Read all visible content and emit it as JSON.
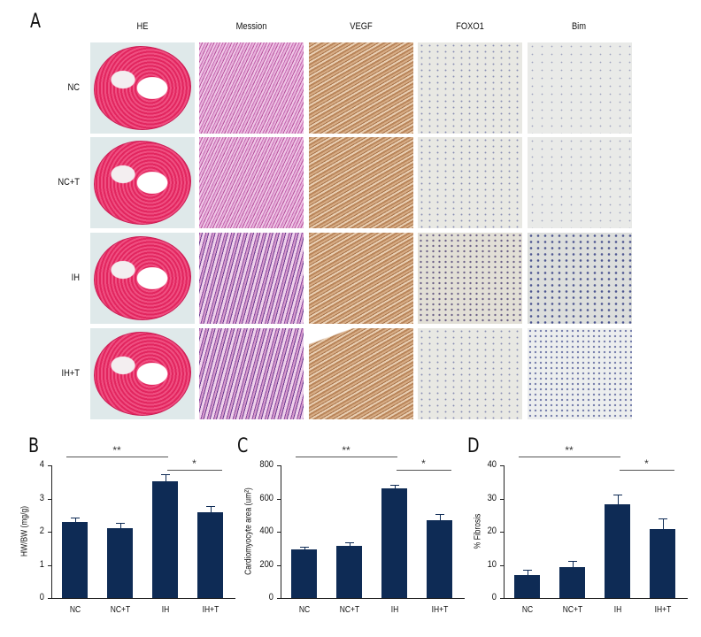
{
  "panel_a": {
    "letter": "A",
    "columns": [
      "HE",
      "Mession",
      "VEGF",
      "FOXO1",
      "Bim"
    ],
    "rows": [
      "NC",
      "NC+T",
      "IH",
      "IH+T"
    ]
  },
  "chart_data": [
    {
      "panel": "B",
      "type": "bar",
      "categories": [
        "NC",
        "NC+T",
        "IH",
        "IH+T"
      ],
      "values": [
        2.3,
        2.12,
        3.53,
        2.6
      ],
      "errors": [
        0.12,
        0.15,
        0.2,
        0.18
      ],
      "title": "",
      "xlabel": "",
      "ylabel": "HW/BW (mg/g)",
      "ylim": [
        0,
        4
      ],
      "yticks": [
        "0",
        "1",
        "2",
        "3",
        "4"
      ],
      "significance": [
        {
          "from": "NC",
          "to": "IH",
          "label": "**"
        },
        {
          "from": "IH",
          "to": "IH+T",
          "label": "*"
        }
      ],
      "color": "#0e2b55"
    },
    {
      "panel": "C",
      "type": "bar",
      "categories": [
        "NC",
        "NC+T",
        "IH",
        "IH+T"
      ],
      "values": [
        295,
        313,
        662,
        470
      ],
      "errors": [
        12,
        22,
        22,
        35
      ],
      "title": "",
      "xlabel": "",
      "ylabel": "Cardiomyocyte area (um²)",
      "ylim": [
        0,
        800
      ],
      "yticks": [
        "0",
        "200",
        "400",
        "600",
        "800"
      ],
      "significance": [
        {
          "from": "NC",
          "to": "IH",
          "label": "**"
        },
        {
          "from": "IH",
          "to": "IH+T",
          "label": "*"
        }
      ],
      "color": "#0e2b55"
    },
    {
      "panel": "D",
      "type": "bar",
      "categories": [
        "NC",
        "NC+T",
        "IH",
        "IH+T"
      ],
      "values": [
        7,
        9.3,
        28.2,
        20.9
      ],
      "errors": [
        1.5,
        2,
        3.1,
        3
      ],
      "title": "",
      "xlabel": "",
      "ylabel": "% Fibrosis",
      "ylim": [
        0,
        40
      ],
      "yticks": [
        "0",
        "10",
        "20",
        "30",
        "40"
      ],
      "significance": [
        {
          "from": "NC",
          "to": "IH",
          "label": "**"
        },
        {
          "from": "IH",
          "to": "IH+T",
          "label": "*"
        }
      ],
      "color": "#0e2b55"
    }
  ]
}
